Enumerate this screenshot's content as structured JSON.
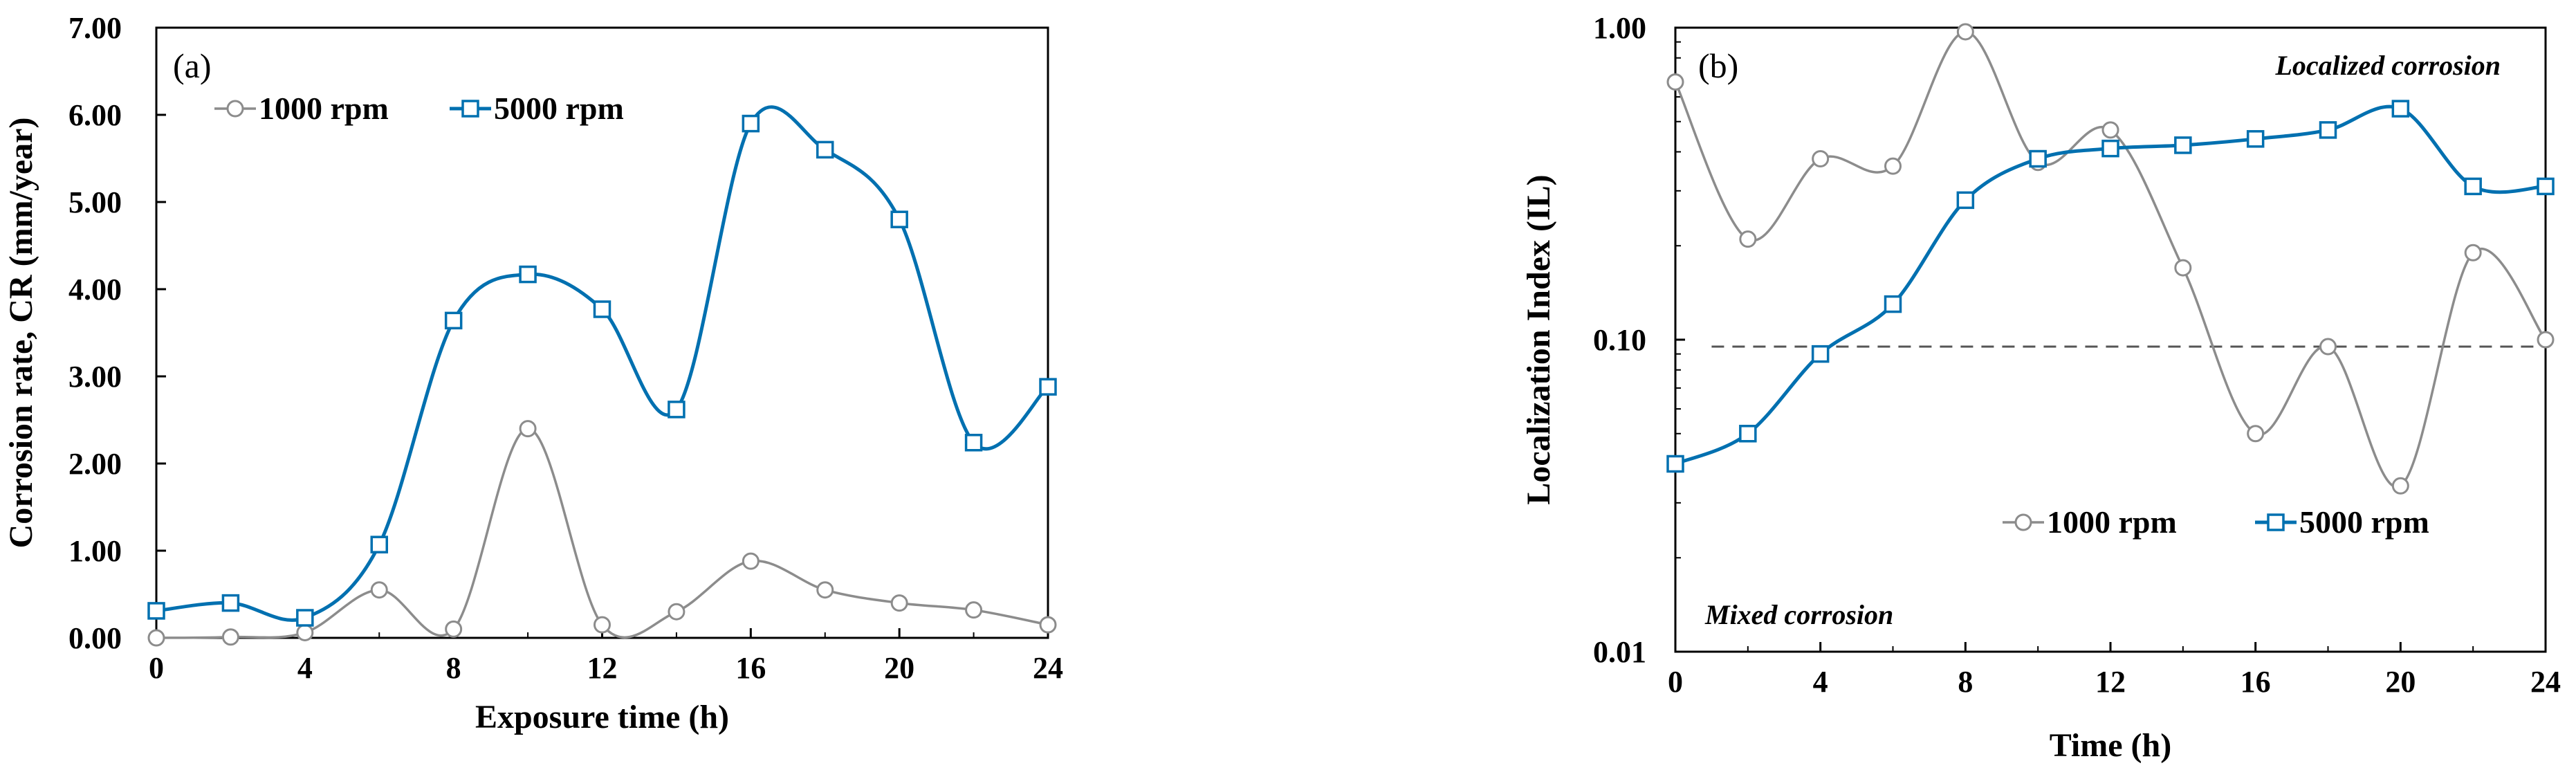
{
  "chart_data": [
    {
      "type": "line",
      "panel_label": "(a)",
      "xlabel": "Exposure time (h)",
      "ylabel": "Corrosion rate, CR (mm/year)",
      "xlim": [
        0,
        24
      ],
      "ylim": [
        0,
        7
      ],
      "x_ticks": [
        0,
        4,
        8,
        12,
        16,
        20,
        24
      ],
      "x_tick_labels": [
        "0",
        "4",
        "8",
        "12",
        "16",
        "20",
        "24"
      ],
      "y_ticks": [
        0,
        1,
        2,
        3,
        4,
        5,
        6,
        7
      ],
      "y_tick_labels": [
        "0.00",
        "1.00",
        "2.00",
        "3.00",
        "4.00",
        "5.00",
        "6.00",
        "7.00"
      ],
      "grid": false,
      "legend_position": "top",
      "series": [
        {
          "name": "1000 rpm",
          "color": "#8c8c8c",
          "marker": "circle",
          "x": [
            0,
            2,
            4,
            6,
            8,
            10,
            12,
            14,
            16,
            18,
            20,
            22,
            24
          ],
          "y": [
            0.0,
            0.01,
            0.06,
            0.55,
            0.1,
            2.4,
            0.15,
            0.3,
            0.88,
            0.55,
            0.4,
            0.32,
            0.15
          ]
        },
        {
          "name": "5000 rpm",
          "color": "#0070b0",
          "marker": "square",
          "x": [
            0,
            2,
            4,
            6,
            8,
            10,
            12,
            14,
            16,
            18,
            20,
            22,
            24
          ],
          "y": [
            0.31,
            0.4,
            0.23,
            1.07,
            3.64,
            4.17,
            3.77,
            2.62,
            5.9,
            5.6,
            4.8,
            2.24,
            2.88
          ]
        }
      ]
    },
    {
      "type": "line",
      "panel_label": "(b)",
      "xlabel": "Time (h)",
      "ylabel": "Localization Index (IL)",
      "xlim": [
        0,
        24
      ],
      "ylim": [
        0.01,
        1.0
      ],
      "yscale": "log",
      "x_ticks": [
        0,
        4,
        8,
        12,
        16,
        20,
        24
      ],
      "x_tick_labels": [
        "0",
        "4",
        "8",
        "12",
        "16",
        "20",
        "24"
      ],
      "y_ticks": [
        0.01,
        0.1,
        1.0
      ],
      "y_tick_labels": [
        "0.01",
        "0.10",
        "1.00"
      ],
      "grid": false,
      "legend_position": "bottom-right",
      "reference_line": {
        "y": 0.095,
        "style": "dashed",
        "xlim": [
          1,
          24
        ]
      },
      "annotations": [
        "Localized corrosion",
        "Mixed corrosion"
      ],
      "series": [
        {
          "name": "1000 rpm",
          "color": "#8c8c8c",
          "marker": "circle",
          "x": [
            0,
            2,
            4,
            6,
            8,
            10,
            12,
            14,
            16,
            18,
            20,
            22,
            24
          ],
          "y": [
            0.67,
            0.21,
            0.38,
            0.36,
            0.97,
            0.37,
            0.47,
            0.17,
            0.05,
            0.095,
            0.034,
            0.19,
            0.1
          ]
        },
        {
          "name": "5000 rpm",
          "color": "#0070b0",
          "marker": "square",
          "x": [
            0,
            2,
            4,
            6,
            8,
            10,
            12,
            14,
            16,
            18,
            20,
            22,
            24
          ],
          "y": [
            0.04,
            0.05,
            0.09,
            0.13,
            0.28,
            0.38,
            0.41,
            0.42,
            0.44,
            0.47,
            0.55,
            0.31,
            0.31
          ]
        }
      ]
    }
  ]
}
